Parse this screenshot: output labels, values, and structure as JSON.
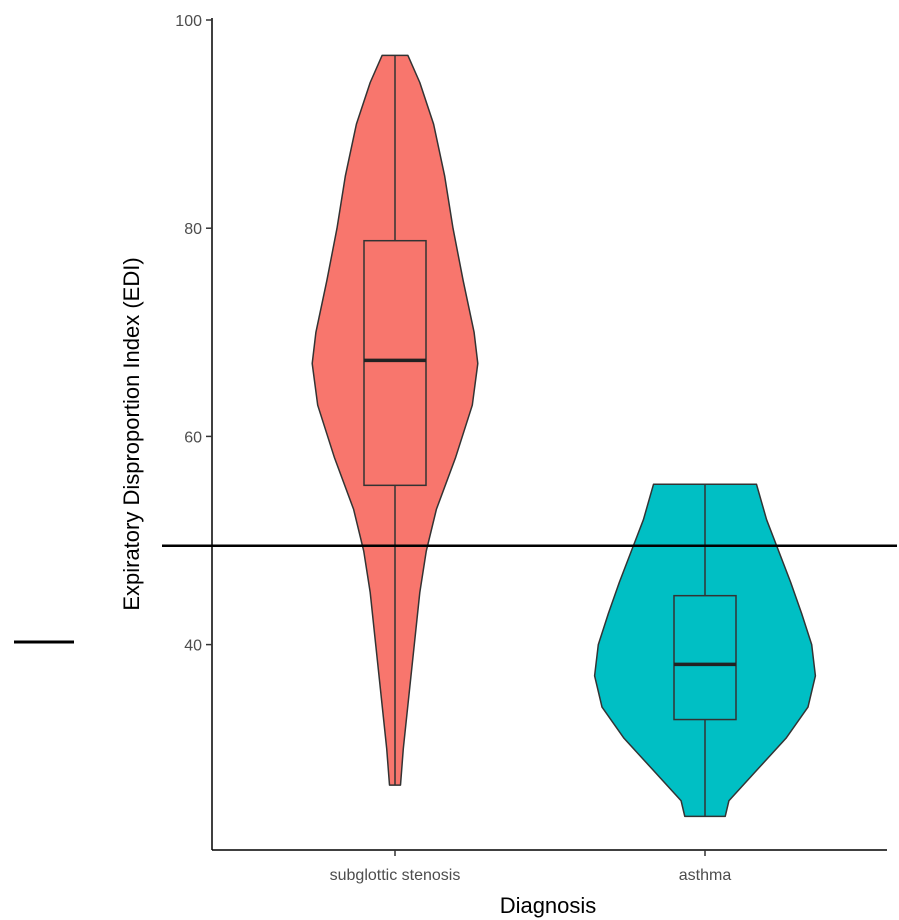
{
  "chart_data": {
    "type": "violin",
    "xlabel": "Diagnosis",
    "ylabel": "Expiratory Disproportion Index (EDI)",
    "ylim": [
      20,
      100
    ],
    "yticks": [
      40,
      60,
      80,
      100
    ],
    "categories": [
      "subglottic stenosis",
      "asthma"
    ],
    "reference_line": {
      "y": 49.5
    },
    "grid": false,
    "legend": "none",
    "groups": [
      {
        "category": "subglottic stenosis",
        "color": "#F8766D",
        "min": 26.5,
        "q1": 55.3,
        "median": 67.3,
        "q3": 78.8,
        "max": 96.6,
        "density": [
          [
            96.6,
            0.14
          ],
          [
            94,
            0.27
          ],
          [
            90,
            0.42
          ],
          [
            85,
            0.54
          ],
          [
            80,
            0.63
          ],
          [
            75,
            0.74
          ],
          [
            70,
            0.86
          ],
          [
            67,
            0.9
          ],
          [
            63,
            0.84
          ],
          [
            58,
            0.66
          ],
          [
            53,
            0.45
          ],
          [
            49,
            0.34
          ],
          [
            45,
            0.27
          ],
          [
            40,
            0.21
          ],
          [
            35,
            0.15
          ],
          [
            30,
            0.09
          ],
          [
            26.5,
            0.06
          ]
        ]
      },
      {
        "category": "asthma",
        "color": "#00BFC4",
        "min": 23.5,
        "q1": 32.8,
        "median": 38.1,
        "q3": 44.7,
        "max": 55.4,
        "density": [
          [
            55.4,
            0.56
          ],
          [
            52,
            0.67
          ],
          [
            49,
            0.8
          ],
          [
            46,
            0.93
          ],
          [
            43,
            1.05
          ],
          [
            40,
            1.16
          ],
          [
            37,
            1.2
          ],
          [
            34,
            1.12
          ],
          [
            31,
            0.88
          ],
          [
            28,
            0.57
          ],
          [
            25,
            0.26
          ],
          [
            23.5,
            0.22
          ]
        ]
      }
    ]
  },
  "decor": {
    "left_dash": true
  }
}
